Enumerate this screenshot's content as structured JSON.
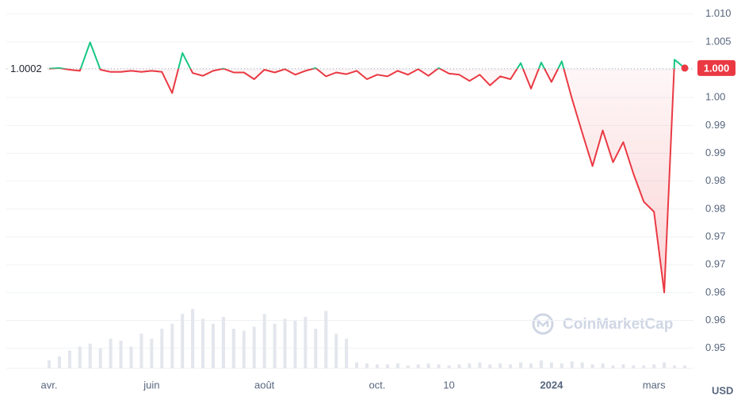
{
  "chart_data": {
    "type": "line",
    "categories": [
      "avr.",
      null,
      null,
      null,
      null,
      null,
      null,
      null,
      null,
      null,
      "juin",
      null,
      null,
      null,
      null,
      null,
      null,
      null,
      null,
      null,
      null,
      "août",
      null,
      null,
      null,
      null,
      null,
      null,
      null,
      null,
      null,
      null,
      "oct.",
      null,
      null,
      null,
      null,
      null,
      null,
      "10",
      null,
      null,
      null,
      null,
      null,
      null,
      null,
      null,
      null,
      "2024",
      null,
      null,
      null,
      null,
      null,
      null,
      null,
      null,
      null,
      "mars",
      null,
      null,
      null
    ],
    "values": [
      1.0002,
      1.0003,
      1.0,
      0.9998,
      1.0049,
      1.0,
      0.9996,
      0.9996,
      0.9998,
      0.9996,
      0.9998,
      0.9996,
      0.9958,
      1.003,
      0.9994,
      0.9989,
      0.9998,
      1.0002,
      0.9995,
      0.9995,
      0.9983,
      1.0,
      0.9995,
      1.0001,
      0.9991,
      0.9998,
      1.0003,
      0.9988,
      0.9995,
      0.9992,
      0.9998,
      0.9983,
      0.9991,
      0.9988,
      0.9998,
      0.9991,
      1.0001,
      0.9989,
      1.0003,
      0.9993,
      0.9991,
      0.998,
      0.9991,
      0.9972,
      0.9988,
      0.9983,
      1.0012,
      0.9966,
      1.0013,
      0.9978,
      1.0015,
      0.9948,
      0.9887,
      0.9827,
      0.9891,
      0.9834,
      0.987,
      0.9813,
      0.9763,
      0.9745,
      0.96,
      1.0018,
      1.0003
    ],
    "volume": [
      8,
      12,
      18,
      22,
      25,
      20,
      30,
      28,
      22,
      35,
      30,
      40,
      45,
      55,
      60,
      50,
      45,
      52,
      40,
      38,
      42,
      55,
      45,
      50,
      48,
      52,
      40,
      58,
      35,
      30,
      6,
      5,
      4,
      4,
      5,
      3,
      4,
      5,
      4,
      3,
      4,
      5,
      6,
      4,
      5,
      4,
      6,
      5,
      8,
      6,
      5,
      7,
      6,
      4,
      5,
      3,
      4,
      3,
      3,
      4,
      6,
      3,
      3
    ],
    "reference": 1.0002,
    "last_price": {
      "value": 1.0003,
      "label": "1.000"
    },
    "up_color": "#16c784",
    "down_color": "#ea3943",
    "ylim": [
      0.9464,
      1.0118
    ],
    "yticks": [
      {
        "value": 1.01,
        "label": "1.010"
      },
      1.005,
      {
        "value": 1.0,
        "label": "1.000"
      },
      {
        "value": 0.995,
        "label": "1.00"
      },
      {
        "value": 0.99,
        "label": "0.99"
      },
      {
        "value": 0.985,
        "label": "0.99"
      },
      {
        "value": 0.98,
        "label": "0.98"
      },
      {
        "value": 0.975,
        "label": "0.98"
      },
      {
        "value": 0.97,
        "label": "0.97"
      },
      {
        "value": 0.965,
        "label": "0.97"
      },
      {
        "value": 0.96,
        "label": "0.96"
      },
      {
        "value": 0.955,
        "label": "0.96"
      },
      {
        "value": 0.95,
        "label": "0.95"
      }
    ],
    "grid": true,
    "y_unit": "USD",
    "watermark": "CoinMarketCap"
  }
}
